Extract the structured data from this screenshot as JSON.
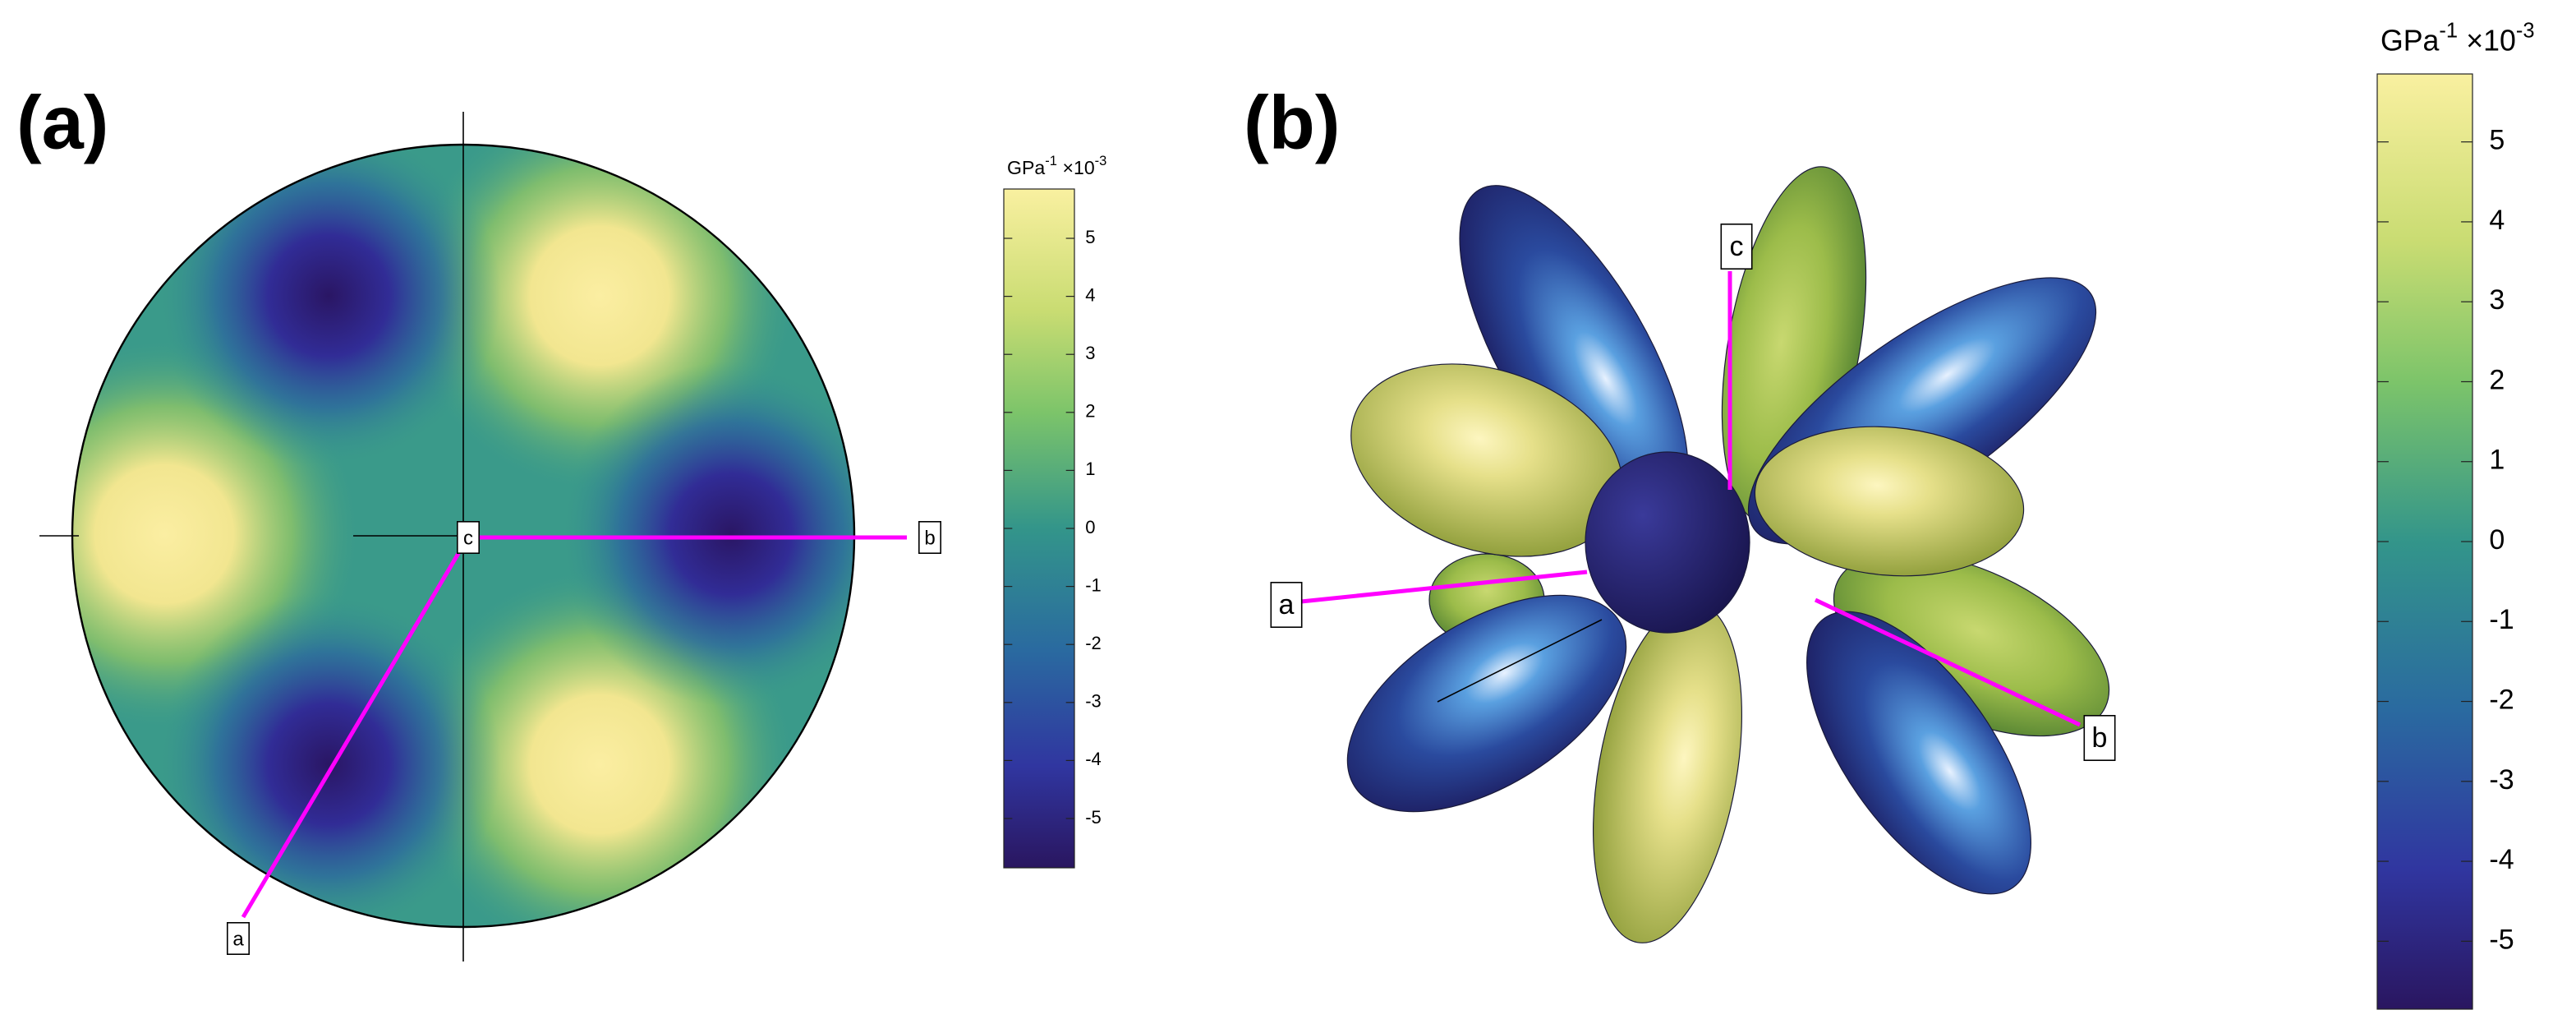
{
  "panels": [
    {
      "label": "(a)",
      "axes": [
        "a",
        "b",
        "c"
      ],
      "colorbar": {
        "unit": "GPa",
        "unit_exponent": "-1",
        "scale": "×10",
        "scale_exponent": "-3",
        "lim": [
          -5.85,
          5.85
        ],
        "ticks": [
          5,
          4,
          3,
          2,
          1,
          0,
          -1,
          -2,
          -3,
          -4,
          -5
        ]
      }
    },
    {
      "label": "(b)",
      "axes": [
        "a",
        "b",
        "c"
      ],
      "colorbar": {
        "unit": "GPa",
        "unit_exponent": "-1",
        "scale": "×10",
        "scale_exponent": "-3",
        "lim": [
          -5.85,
          5.85
        ],
        "ticks": [
          5,
          4,
          3,
          2,
          1,
          0,
          -1,
          -2,
          -3,
          -4,
          -5
        ]
      }
    }
  ]
}
